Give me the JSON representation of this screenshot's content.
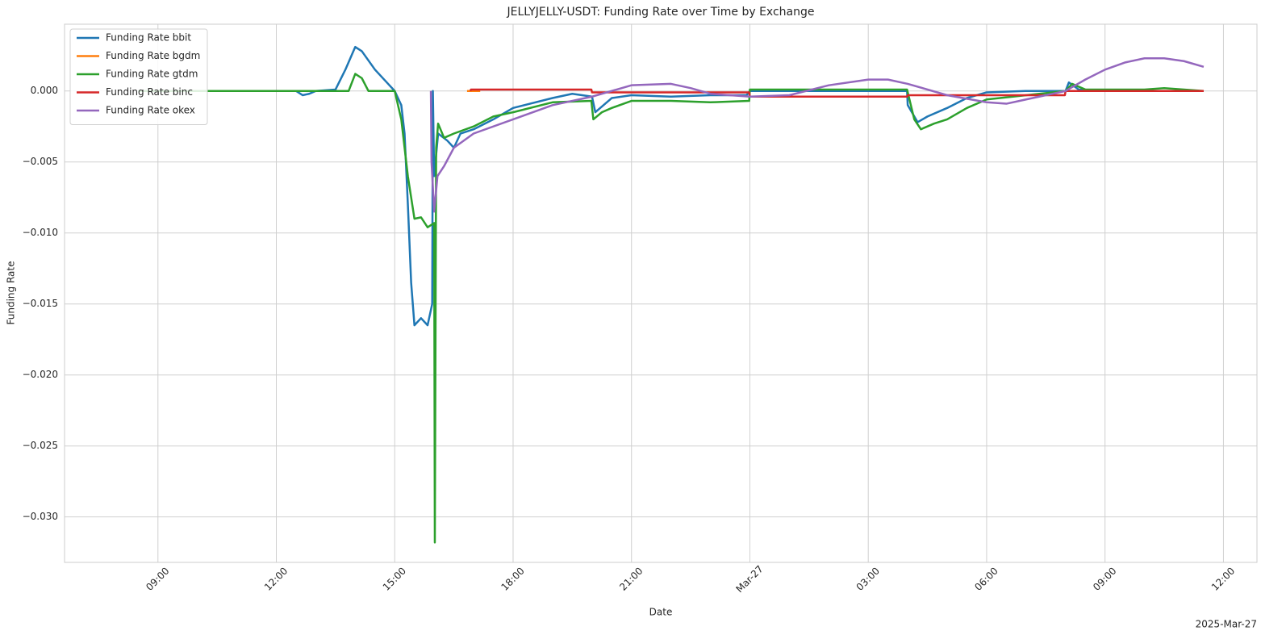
{
  "chart_data": {
    "type": "line",
    "title": "JELLYJELLY-USDT: Funding Rate over Time by Exchange",
    "x_label": "Date",
    "y_label": "Funding Rate",
    "x_offset_label": "2025-Mar-27",
    "xlim": [
      "2025-03-26 06:38",
      "2025-03-27 12:51"
    ],
    "xticks": [
      {
        "value": "2025-03-26 09:00",
        "label": "09:00"
      },
      {
        "value": "2025-03-26 12:00",
        "label": "12:00"
      },
      {
        "value": "2025-03-26 15:00",
        "label": "15:00"
      },
      {
        "value": "2025-03-26 18:00",
        "label": "18:00"
      },
      {
        "value": "2025-03-26 21:00",
        "label": "21:00"
      },
      {
        "value": "2025-03-27 00:00",
        "label": "Mar-27"
      },
      {
        "value": "2025-03-27 03:00",
        "label": "03:00"
      },
      {
        "value": "2025-03-27 06:00",
        "label": "06:00"
      },
      {
        "value": "2025-03-27 09:00",
        "label": "09:00"
      },
      {
        "value": "2025-03-27 12:00",
        "label": "12:00"
      }
    ],
    "ylim": [
      -0.0332,
      0.0047
    ],
    "yticks": [
      {
        "value": 0.0,
        "label": "0.000"
      },
      {
        "value": -0.005,
        "label": "−0.005"
      },
      {
        "value": -0.01,
        "label": "−0.010"
      },
      {
        "value": -0.015,
        "label": "−0.015"
      },
      {
        "value": -0.02,
        "label": "−0.020"
      },
      {
        "value": -0.025,
        "label": "−0.025"
      },
      {
        "value": -0.03,
        "label": "−0.030"
      }
    ],
    "grid": true,
    "legend": "upper left",
    "series": [
      {
        "name": "Funding Rate bbit",
        "color": "#1f77b4",
        "x": [
          "2025-03-26 08:30",
          "2025-03-26 12:30",
          "2025-03-26 12:40",
          "2025-03-26 12:50",
          "2025-03-26 13:00",
          "2025-03-26 13:30",
          "2025-03-26 13:45",
          "2025-03-26 14:00",
          "2025-03-26 14:10",
          "2025-03-26 14:30",
          "2025-03-26 14:50",
          "2025-03-26 15:00",
          "2025-03-26 15:10",
          "2025-03-26 15:15",
          "2025-03-26 15:20",
          "2025-03-26 15:25",
          "2025-03-26 15:30",
          "2025-03-26 15:40",
          "2025-03-26 15:50",
          "2025-03-26 15:57",
          "2025-03-26 15:58",
          "2025-03-26 16:00",
          "2025-03-26 16:06",
          "2025-03-26 16:20",
          "2025-03-26 16:30",
          "2025-03-26 16:40",
          "2025-03-26 17:00",
          "2025-03-26 17:30",
          "2025-03-26 18:00",
          "2025-03-26 19:00",
          "2025-03-26 19:30",
          "2025-03-26 20:00",
          "2025-03-26 20:05",
          "2025-03-26 20:30",
          "2025-03-26 21:00",
          "2025-03-26 22:00",
          "2025-03-26 23:00",
          "2025-03-26 23:55",
          "2025-03-27 00:00",
          "2025-03-27 03:59",
          "2025-03-27 04:00",
          "2025-03-27 04:15",
          "2025-03-27 04:30",
          "2025-03-27 05:00",
          "2025-03-27 05:30",
          "2025-03-27 06:00",
          "2025-03-27 07:00",
          "2025-03-27 08:00",
          "2025-03-27 08:05",
          "2025-03-27 08:20",
          "2025-03-27 09:00",
          "2025-03-27 11:30"
        ],
        "values": [
          0,
          0,
          -0.0003,
          -0.0002,
          0,
          0.0001,
          0.0015,
          0.0031,
          0.0028,
          0.0015,
          0.0005,
          0,
          -0.001,
          -0.003,
          -0.008,
          -0.0135,
          -0.0165,
          -0.016,
          -0.0165,
          -0.015,
          0,
          -0.006,
          -0.003,
          -0.0035,
          -0.004,
          -0.003,
          -0.0027,
          -0.002,
          -0.0012,
          -0.0005,
          -0.0002,
          -0.0004,
          -0.0015,
          -0.0005,
          -0.0003,
          -0.0004,
          -0.0003,
          -0.0003,
          0,
          0,
          -0.001,
          -0.0022,
          -0.0018,
          -0.0012,
          -0.0005,
          -0.0001,
          0,
          0,
          0.0006,
          0.0001,
          0,
          0
        ]
      },
      {
        "name": "Funding Rate bgdm",
        "color": "#ff7f0e",
        "x": [
          "2025-03-26 16:50",
          "2025-03-26 17:10"
        ],
        "values": [
          0,
          0
        ]
      },
      {
        "name": "Funding Rate gtdm",
        "color": "#2ca02c",
        "x": [
          "2025-03-26 08:30",
          "2025-03-26 13:50",
          "2025-03-26 14:00",
          "2025-03-26 14:10",
          "2025-03-26 14:20",
          "2025-03-26 15:00",
          "2025-03-26 15:10",
          "2025-03-26 15:20",
          "2025-03-26 15:30",
          "2025-03-26 15:40",
          "2025-03-26 15:50",
          "2025-03-26 16:00",
          "2025-03-26 16:01",
          "2025-03-26 16:03",
          "2025-03-26 16:06",
          "2025-03-26 16:15",
          "2025-03-26 16:30",
          "2025-03-26 17:00",
          "2025-03-26 17:30",
          "2025-03-26 18:00",
          "2025-03-26 19:00",
          "2025-03-26 19:59",
          "2025-03-26 20:02",
          "2025-03-26 20:15",
          "2025-03-26 20:30",
          "2025-03-26 21:00",
          "2025-03-26 22:00",
          "2025-03-26 23:00",
          "2025-03-26 23:59",
          "2025-03-27 00:00",
          "2025-03-27 03:59",
          "2025-03-27 04:10",
          "2025-03-27 04:20",
          "2025-03-27 04:40",
          "2025-03-27 05:00",
          "2025-03-27 05:30",
          "2025-03-27 06:00",
          "2025-03-27 07:00",
          "2025-03-27 08:00",
          "2025-03-27 08:10",
          "2025-03-27 08:30",
          "2025-03-27 10:00",
          "2025-03-27 10:30",
          "2025-03-27 11:30"
        ],
        "values": [
          0,
          0,
          0.0012,
          0.0009,
          0,
          0,
          -0.002,
          -0.006,
          -0.009,
          -0.0089,
          -0.0096,
          -0.0093,
          -0.0318,
          -0.004,
          -0.0023,
          -0.0033,
          -0.003,
          -0.0025,
          -0.0018,
          -0.0015,
          -0.0008,
          -0.0007,
          -0.002,
          -0.0015,
          -0.0012,
          -0.0007,
          -0.0007,
          -0.0008,
          -0.0007,
          0.0001,
          0.0001,
          -0.002,
          -0.0027,
          -0.0023,
          -0.002,
          -0.0012,
          -0.0006,
          -0.0003,
          0,
          0.0005,
          0.0001,
          0.0001,
          0.0002,
          0
        ]
      },
      {
        "name": "Funding Rate binc",
        "color": "#d62728",
        "x": [
          "2025-03-26 16:55",
          "2025-03-26 16:56",
          "2025-03-26 19:59",
          "2025-03-26 20:00",
          "2025-03-26 23:59",
          "2025-03-27 00:00",
          "2025-03-27 03:59",
          "2025-03-27 04:00",
          "2025-03-27 07:59",
          "2025-03-27 08:00",
          "2025-03-27 11:30"
        ],
        "values": [
          0,
          0.0001,
          0.0001,
          -0.0001,
          -0.0001,
          -0.0004,
          -0.0004,
          -0.0003,
          -0.0003,
          0,
          0
        ]
      },
      {
        "name": "Funding Rate okex",
        "color": "#9467bd",
        "x": [
          "2025-03-26 15:55",
          "2025-03-26 15:56",
          "2025-03-26 16:00",
          "2025-03-26 16:05",
          "2025-03-26 16:15",
          "2025-03-26 16:30",
          "2025-03-26 17:00",
          "2025-03-26 18:00",
          "2025-03-26 19:00",
          "2025-03-26 20:00",
          "2025-03-26 20:30",
          "2025-03-26 21:00",
          "2025-03-26 22:00",
          "2025-03-26 22:30",
          "2025-03-26 23:00",
          "2025-03-27 00:00",
          "2025-03-27 01:00",
          "2025-03-27 02:00",
          "2025-03-27 03:00",
          "2025-03-27 03:30",
          "2025-03-27 04:00",
          "2025-03-27 05:00",
          "2025-03-27 06:00",
          "2025-03-27 06:30",
          "2025-03-27 07:00",
          "2025-03-27 08:00",
          "2025-03-27 08:30",
          "2025-03-27 09:00",
          "2025-03-27 09:30",
          "2025-03-27 10:00",
          "2025-03-27 10:30",
          "2025-03-27 11:00",
          "2025-03-27 11:30"
        ],
        "values": [
          0,
          -0.005,
          -0.0085,
          -0.006,
          -0.0053,
          -0.004,
          -0.003,
          -0.002,
          -0.001,
          -0.0004,
          0,
          0.0004,
          0.0005,
          0.0002,
          -0.0002,
          -0.0004,
          -0.0003,
          0.0004,
          0.0008,
          0.0008,
          0.0005,
          -0.0003,
          -0.0008,
          -0.0009,
          -0.0006,
          0,
          0.0008,
          0.0015,
          0.002,
          0.0023,
          0.0023,
          0.0021,
          0.0017
        ]
      }
    ]
  }
}
